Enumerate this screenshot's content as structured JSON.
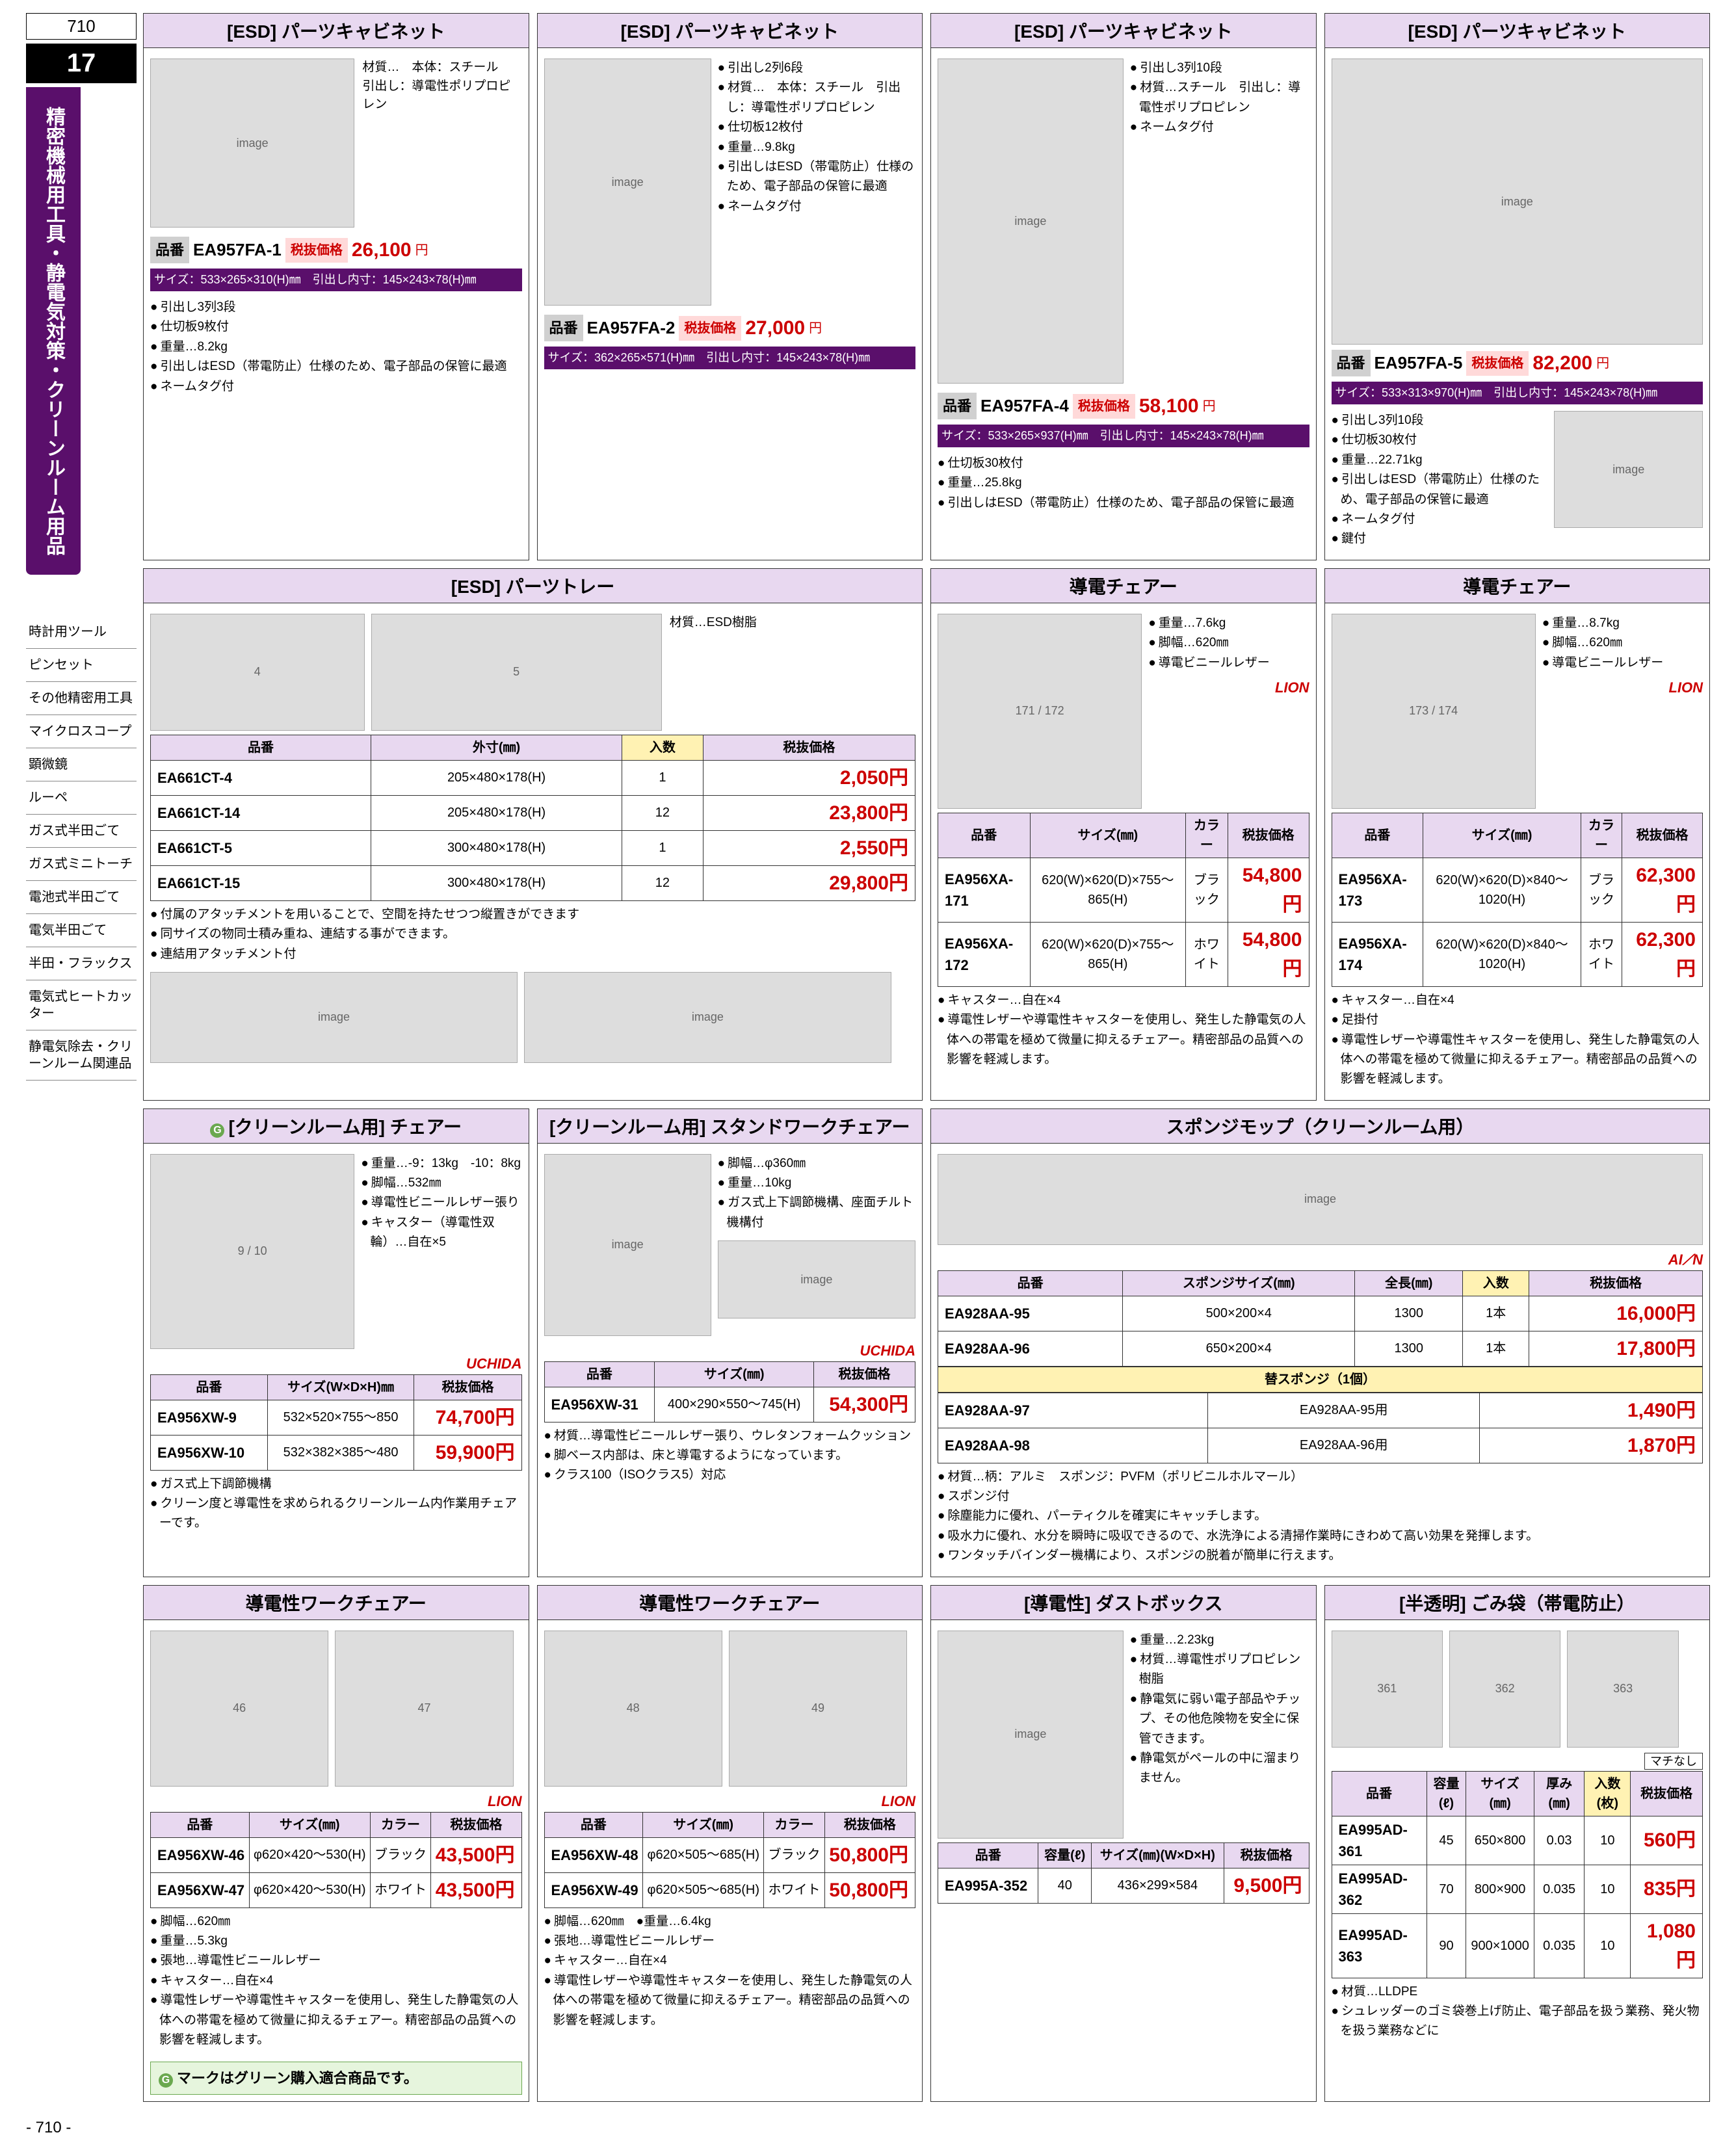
{
  "page_number_top": "710",
  "page_number_bottom": "- 710 -",
  "section_number": "17",
  "section_title": "精密機械用工具・静電気対策・クリーンルーム用品",
  "side_links": [
    "時計用ツール",
    "ピンセット",
    "その他精密用工具",
    "マイクロスコープ",
    "顕微鏡",
    "ルーペ",
    "ガス式半田ごて",
    "ガス式ミニトーチ",
    "電池式半田ごて",
    "電気半田ごて",
    "半田・フラックス",
    "電気式ヒートカッター",
    "静電気除去・クリーンルーム関連品"
  ],
  "green_note": "マークはグリーン購入適合商品です。",
  "colors": {
    "section_bg": "#5a0f6b",
    "title_bg": "#e8d8f0",
    "qty_bg": "#fff2b3",
    "price_color": "#c00000",
    "price_bg": "#ffd9d9"
  },
  "cab1": {
    "title": "[ESD] パーツキャビネット",
    "sku_label": "品番",
    "sku": "EA957FA-1",
    "price_label": "税抜価格",
    "price": "26,100",
    "yen": "円",
    "size": "サイズ：533×265×310(H)㎜　引出し内寸：145×243×78(H)㎜",
    "specs": [
      "引出し3列3段",
      "仕切板9枚付",
      "重量…8.2kg",
      "引出しはESD（帯電防止）仕様のため、電子部品の保管に最適",
      "ネームタグ付"
    ],
    "mat": "材質…　本体：スチール　引出し：導電性ポリプロピレン"
  },
  "cab2": {
    "title": "[ESD] パーツキャビネット",
    "sku_label": "品番",
    "sku": "EA957FA-2",
    "price_label": "税抜価格",
    "price": "27,000",
    "yen": "円",
    "size": "サイズ：362×265×571(H)㎜　引出し内寸：145×243×78(H)㎜",
    "specs": [
      "引出し2列6段",
      "材質…　本体：スチール　引出し：導電性ポリプロピレン",
      "仕切板12枚付",
      "重量…9.8kg",
      "引出しはESD（帯電防止）仕様のため、電子部品の保管に最適",
      "ネームタグ付"
    ]
  },
  "cab3": {
    "title": "[ESD] パーツキャビネット",
    "sku_label": "品番",
    "sku": "EA957FA-4",
    "price_label": "税抜価格",
    "price": "58,100",
    "yen": "円",
    "size": "サイズ：533×265×937(H)㎜　引出し内寸：145×243×78(H)㎜",
    "top_specs": [
      "引出し3列10段",
      "材質…スチール　引出し：導電性ポリプロピレン",
      "ネームタグ付"
    ],
    "specs": [
      "仕切板30枚付",
      "重量…25.8kg",
      "引出しはESD（帯電防止）仕様のため、電子部品の保管に最適"
    ]
  },
  "cab4": {
    "title": "[ESD] パーツキャビネット",
    "sku_label": "品番",
    "sku": "EA957FA-5",
    "price_label": "税抜価格",
    "price": "82,200",
    "yen": "円",
    "size": "サイズ：533×313×970(H)㎜　引出し内寸：145×243×78(H)㎜",
    "specs": [
      "引出し3列10段",
      "仕切板30枚付",
      "重量…22.71kg",
      "引出しはESD（帯電防止）仕様のため、電子部品の保管に最適",
      "ネームタグ付",
      "鍵付"
    ]
  },
  "tray": {
    "title": "[ESD] パーツトレー",
    "mat": "材質…ESD樹脂",
    "cols": [
      "品番",
      "外寸(㎜)",
      "入数",
      "税抜価格"
    ],
    "rows": [
      [
        "EA661CT-4",
        "205×480×178(H)",
        "1",
        "2,050円"
      ],
      [
        "EA661CT-14",
        "205×480×178(H)",
        "12",
        "23,800円"
      ],
      [
        "EA661CT-5",
        "300×480×178(H)",
        "1",
        "2,550円"
      ],
      [
        "EA661CT-15",
        "300×480×178(H)",
        "12",
        "29,800円"
      ]
    ],
    "notes": [
      "付属のアタッチメントを用いることで、空間を持たせつつ縦置きができます",
      "同サイズの物同士積み重ね、連結する事ができます。",
      "連結用アタッチメント付"
    ]
  },
  "chair_a": {
    "title": "導電チェアー",
    "specs": [
      "重量…7.6kg",
      "脚幅…620㎜",
      "導電ビニールレザー"
    ],
    "cols": [
      "品番",
      "サイズ(㎜)",
      "カラー",
      "税抜価格"
    ],
    "rows": [
      [
        "EA956XA-171",
        "620(W)×620(D)×755～865(H)",
        "ブラック",
        "54,800円"
      ],
      [
        "EA956XA-172",
        "620(W)×620(D)×755～865(H)",
        "ホワイト",
        "54,800円"
      ]
    ],
    "notes": [
      "キャスター…自在×4",
      "導電性レザーや導電性キャスターを使用し、発生した静電気の人体への帯電を極めて微量に抑えるチェアー。精密部品の品質への影響を軽減します。"
    ],
    "brand": "LION"
  },
  "chair_b": {
    "title": "導電チェアー",
    "specs": [
      "重量…8.7kg",
      "脚幅…620㎜",
      "導電ビニールレザー"
    ],
    "cols": [
      "品番",
      "サイズ(㎜)",
      "カラー",
      "税抜価格"
    ],
    "rows": [
      [
        "EA956XA-173",
        "620(W)×620(D)×840～1020(H)",
        "ブラック",
        "62,300円"
      ],
      [
        "EA956XA-174",
        "620(W)×620(D)×840～1020(H)",
        "ホワイト",
        "62,300円"
      ]
    ],
    "notes": [
      "キャスター…自在×4",
      "足掛付",
      "導電性レザーや導電性キャスターを使用し、発生した静電気の人体への帯電を極めて微量に抑えるチェアー。精密部品の品質への影響を軽減します。"
    ],
    "brand": "LION"
  },
  "clean_chair": {
    "title": "[クリーンルーム用] チェアー",
    "specs": [
      "重量…-9：13kg　-10：8kg",
      "脚幅…532㎜",
      "導電性ビニールレザー張り",
      "キャスター（導電性双輪）…自在×5"
    ],
    "cols": [
      "品番",
      "サイズ(W×D×H)㎜",
      "税抜価格"
    ],
    "rows": [
      [
        "EA956XW-9",
        "532×520×755～850",
        "74,700円"
      ],
      [
        "EA956XW-10",
        "532×382×385～480",
        "59,900円"
      ]
    ],
    "notes": [
      "ガス式上下調節機構",
      "クリーン度と導電性を求められるクリーンルーム内作業用チェアーです。"
    ],
    "brand": "UCHIDA"
  },
  "stand_chair": {
    "title": "[クリーンルーム用] スタンドワークチェアー",
    "specs": [
      "脚幅…φ360㎜",
      "重量…10kg",
      "ガス式上下調節機構、座面チルト機構付"
    ],
    "cols": [
      "品番",
      "サイズ(㎜)",
      "税抜価格"
    ],
    "rows": [
      [
        "EA956XW-31",
        "400×290×550～745(H)",
        "54,300円"
      ]
    ],
    "notes": [
      "材質…導電性ビニールレザー張り、ウレタンフォームクッション",
      "脚ベース内部は、床と導電するようになっています。",
      "クラス100（ISOクラス5）対応"
    ],
    "brand": "UCHIDA"
  },
  "mop": {
    "title": "スポンジモップ（クリーンルーム用）",
    "cols": [
      "品番",
      "スポンジサイズ(㎜)",
      "全長(㎜)",
      "入数",
      "税抜価格"
    ],
    "rows": [
      [
        "EA928AA-95",
        "500×200×4",
        "1300",
        "1本",
        "16,000円"
      ],
      [
        "EA928AA-96",
        "650×200×4",
        "1300",
        "1本",
        "17,800円"
      ]
    ],
    "spare_title": "替スポンジ（1個）",
    "spare_rows": [
      [
        "EA928AA-97",
        "EA928AA-95用",
        "1,490円"
      ],
      [
        "EA928AA-98",
        "EA928AA-96用",
        "1,870円"
      ]
    ],
    "notes": [
      "材質…柄：アルミ　スポンジ：PVFM（ポリビニルホルマール）",
      "スポンジ付",
      "除塵能力に優れ、パーティクルを確実にキャッチします。",
      "吸水力に優れ、水分を瞬時に吸収できるので、水洗浄による清掃作業時にきわめて高い効果を発揮します。",
      "ワンタッチバインダー機構により、スポンジの脱着が簡単に行えます。"
    ],
    "brand": "AI⟋N"
  },
  "work_chair_a": {
    "title": "導電性ワークチェアー",
    "cols": [
      "品番",
      "サイズ(㎜)",
      "カラー",
      "税抜価格"
    ],
    "rows": [
      [
        "EA956XW-46",
        "φ620×420～530(H)",
        "ブラック",
        "43,500円"
      ],
      [
        "EA956XW-47",
        "φ620×420～530(H)",
        "ホワイト",
        "43,500円"
      ]
    ],
    "notes": [
      "脚幅…620㎜",
      "重量…5.3kg",
      "張地…導電性ビニールレザー",
      "キャスター…自在×4",
      "導電性レザーや導電性キャスターを使用し、発生した静電気の人体への帯電を極めて微量に抑えるチェアー。精密部品の品質への影響を軽減します。"
    ],
    "brand": "LION"
  },
  "work_chair_b": {
    "title": "導電性ワークチェアー",
    "cols": [
      "品番",
      "サイズ(㎜)",
      "カラー",
      "税抜価格"
    ],
    "rows": [
      [
        "EA956XW-48",
        "φ620×505～685(H)",
        "ブラック",
        "50,800円"
      ],
      [
        "EA956XW-49",
        "φ620×505～685(H)",
        "ホワイト",
        "50,800円"
      ]
    ],
    "notes": [
      "脚幅…620㎜　●重量…6.4kg",
      "張地…導電性ビニールレザー",
      "キャスター…自在×4",
      "導電性レザーや導電性キャスターを使用し、発生した静電気の人体への帯電を極めて微量に抑えるチェアー。精密部品の品質への影響を軽減します。"
    ],
    "brand": "LION"
  },
  "dustbox": {
    "title": "[導電性] ダストボックス",
    "specs": [
      "重量…2.23kg",
      "材質…導電性ポリプロピレン樹脂",
      "静電気に弱い電子部品やチップ、その他危険物を安全に保管できます。",
      "静電気がペールの中に溜まりません。"
    ],
    "cols": [
      "品番",
      "容量(ℓ)",
      "サイズ(㎜)(W×D×H)",
      "税抜価格"
    ],
    "rows": [
      [
        "EA995A-352",
        "40",
        "436×299×584",
        "9,500円"
      ]
    ]
  },
  "bag": {
    "title": "[半透明] ごみ袋（帯電防止）",
    "cols": [
      "品番",
      "容量(ℓ)",
      "サイズ(㎜)",
      "厚み(㎜)",
      "入数(枚)",
      "税抜価格"
    ],
    "rows": [
      [
        "EA995AD-361",
        "45",
        "650×800",
        "0.03",
        "10",
        "560円"
      ],
      [
        "EA995AD-362",
        "70",
        "800×900",
        "0.035",
        "10",
        "835円"
      ],
      [
        "EA995AD-363",
        "90",
        "900×1000",
        "0.035",
        "10",
        "1,080円"
      ]
    ],
    "notes": [
      "材質…LLDPE",
      "シュレッダーのゴミ袋巻上げ防止、電子部品を扱う業務、発火物を扱う業務などに"
    ],
    "tag": "マチなし"
  }
}
